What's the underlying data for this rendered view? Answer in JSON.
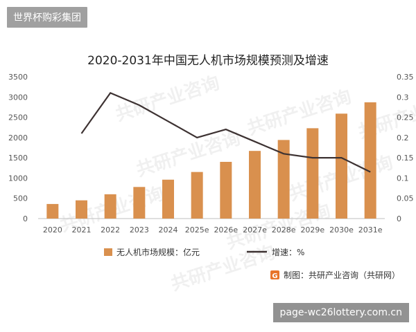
{
  "overlay_top": "世界杯购彩集团",
  "overlay_bottom": "page-wc26lottery.com.cn",
  "source_text": "制图：共研产业咨询（共研网）",
  "chart_data": {
    "type": "bar",
    "title": "2020-2031年中国无人机市场规模预测及增速",
    "categories": [
      "2020",
      "2021",
      "2022",
      "2023",
      "2024",
      "2025e",
      "2026e",
      "2027e",
      "2028e",
      "2029e",
      "2030e",
      "2031e"
    ],
    "series": [
      {
        "name": "无人机市场规模：亿元",
        "type": "bar",
        "axis": "left",
        "values": [
          360,
          450,
          600,
          780,
          960,
          1150,
          1400,
          1670,
          1940,
          2230,
          2590,
          2870
        ]
      },
      {
        "name": "增速：%",
        "type": "line",
        "axis": "right",
        "values": [
          null,
          0.21,
          0.31,
          0.28,
          0.24,
          0.2,
          0.22,
          0.19,
          0.16,
          0.15,
          0.15,
          0.115
        ]
      }
    ],
    "yaxis_left": {
      "ticks": [
        "0",
        "500",
        "1000",
        "1500",
        "2000",
        "2500",
        "3000",
        "3500"
      ],
      "min": 0,
      "max": 3500
    },
    "yaxis_right": {
      "ticks": [
        "0",
        "0.05",
        "0.1",
        "0.15",
        "0.2",
        "0.25",
        "0.3",
        "0.35"
      ],
      "min": 0,
      "max": 0.35
    },
    "legend_position": "bottom",
    "grid": false,
    "colors": {
      "bar": "#d9904e",
      "line": "#3d3232"
    },
    "watermark": "共研产业咨询"
  }
}
